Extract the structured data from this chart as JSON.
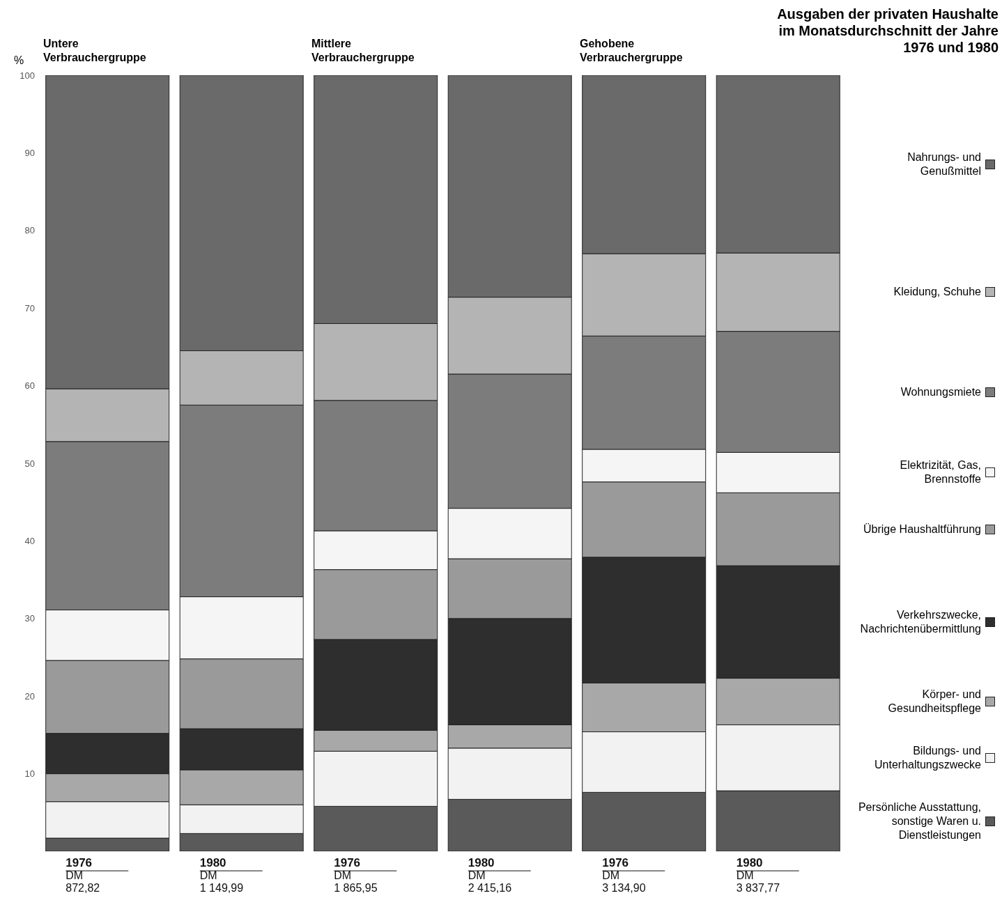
{
  "chart_data": {
    "type": "bar",
    "stacked": true,
    "title": "Ausgaben der privaten Haushalte im Monatsdurchschnitt der Jahre 1976 und 1980",
    "ylabel": "%",
    "annotations": [
      "Untere Verbrauchergruppe",
      "Mittlere Verbrauchergruppe",
      "Gehobene Verbrauchergruppe"
    ],
    "categories": [
      "1976\nDM\n872,82",
      "1980\nDM\n1 149,99",
      "1976\nDM\n1 865,95",
      "1980\nDM\n2 415,16",
      "1976\nDM\n3 134,90",
      "1980\nDM\n3 837,77"
    ],
    "series": [
      {
        "name": "Persönliche Ausstattung, sonstige Waren u. Dienstleistungen",
        "color": "#5a5a5a",
        "values": [
          1.7,
          2.3,
          5.8,
          6.7,
          7.6,
          7.8
        ]
      },
      {
        "name": "Bildungs- und Unterhaltungszwecke",
        "color": "#f2f2f2",
        "values": [
          4.7,
          3.7,
          7.1,
          6.6,
          7.8,
          8.5
        ]
      },
      {
        "name": "Körper- und Gesundheitspflege",
        "color": "#a8a8a8",
        "values": [
          3.6,
          4.5,
          2.7,
          3.0,
          6.3,
          6.0
        ]
      },
      {
        "name": "Verkehrszwecke, Nachrichtenübermittlung",
        "color": "#2e2e2e",
        "values": [
          5.2,
          5.3,
          11.7,
          13.7,
          16.2,
          14.5
        ]
      },
      {
        "name": "Übrige Haushaltführung",
        "color": "#9a9a9a",
        "values": [
          9.4,
          9.0,
          9.0,
          7.7,
          9.7,
          9.4
        ]
      },
      {
        "name": "Elektrizität, Gas, Brennstoffe",
        "color": "#f5f5f5",
        "values": [
          6.5,
          8.0,
          5.0,
          6.5,
          4.2,
          5.2
        ]
      },
      {
        "name": "Wohnungsmiete",
        "color": "#7c7c7c",
        "values": [
          21.7,
          24.7,
          16.8,
          17.3,
          14.6,
          15.6
        ]
      },
      {
        "name": "Kleidung, Schuhe",
        "color": "#b4b4b4",
        "values": [
          6.8,
          7.0,
          9.9,
          9.9,
          10.6,
          10.1
        ]
      },
      {
        "name": "Nahrungs- und Genußmittel",
        "color": "#6a6a6a",
        "values": [
          40.4,
          35.5,
          32.0,
          28.6,
          23.0,
          22.9
        ]
      }
    ],
    "ylim": [
      0,
      100
    ],
    "yticks": [
      10,
      20,
      30,
      40,
      50,
      60,
      70,
      80,
      90,
      100
    ],
    "legend": "right"
  }
}
